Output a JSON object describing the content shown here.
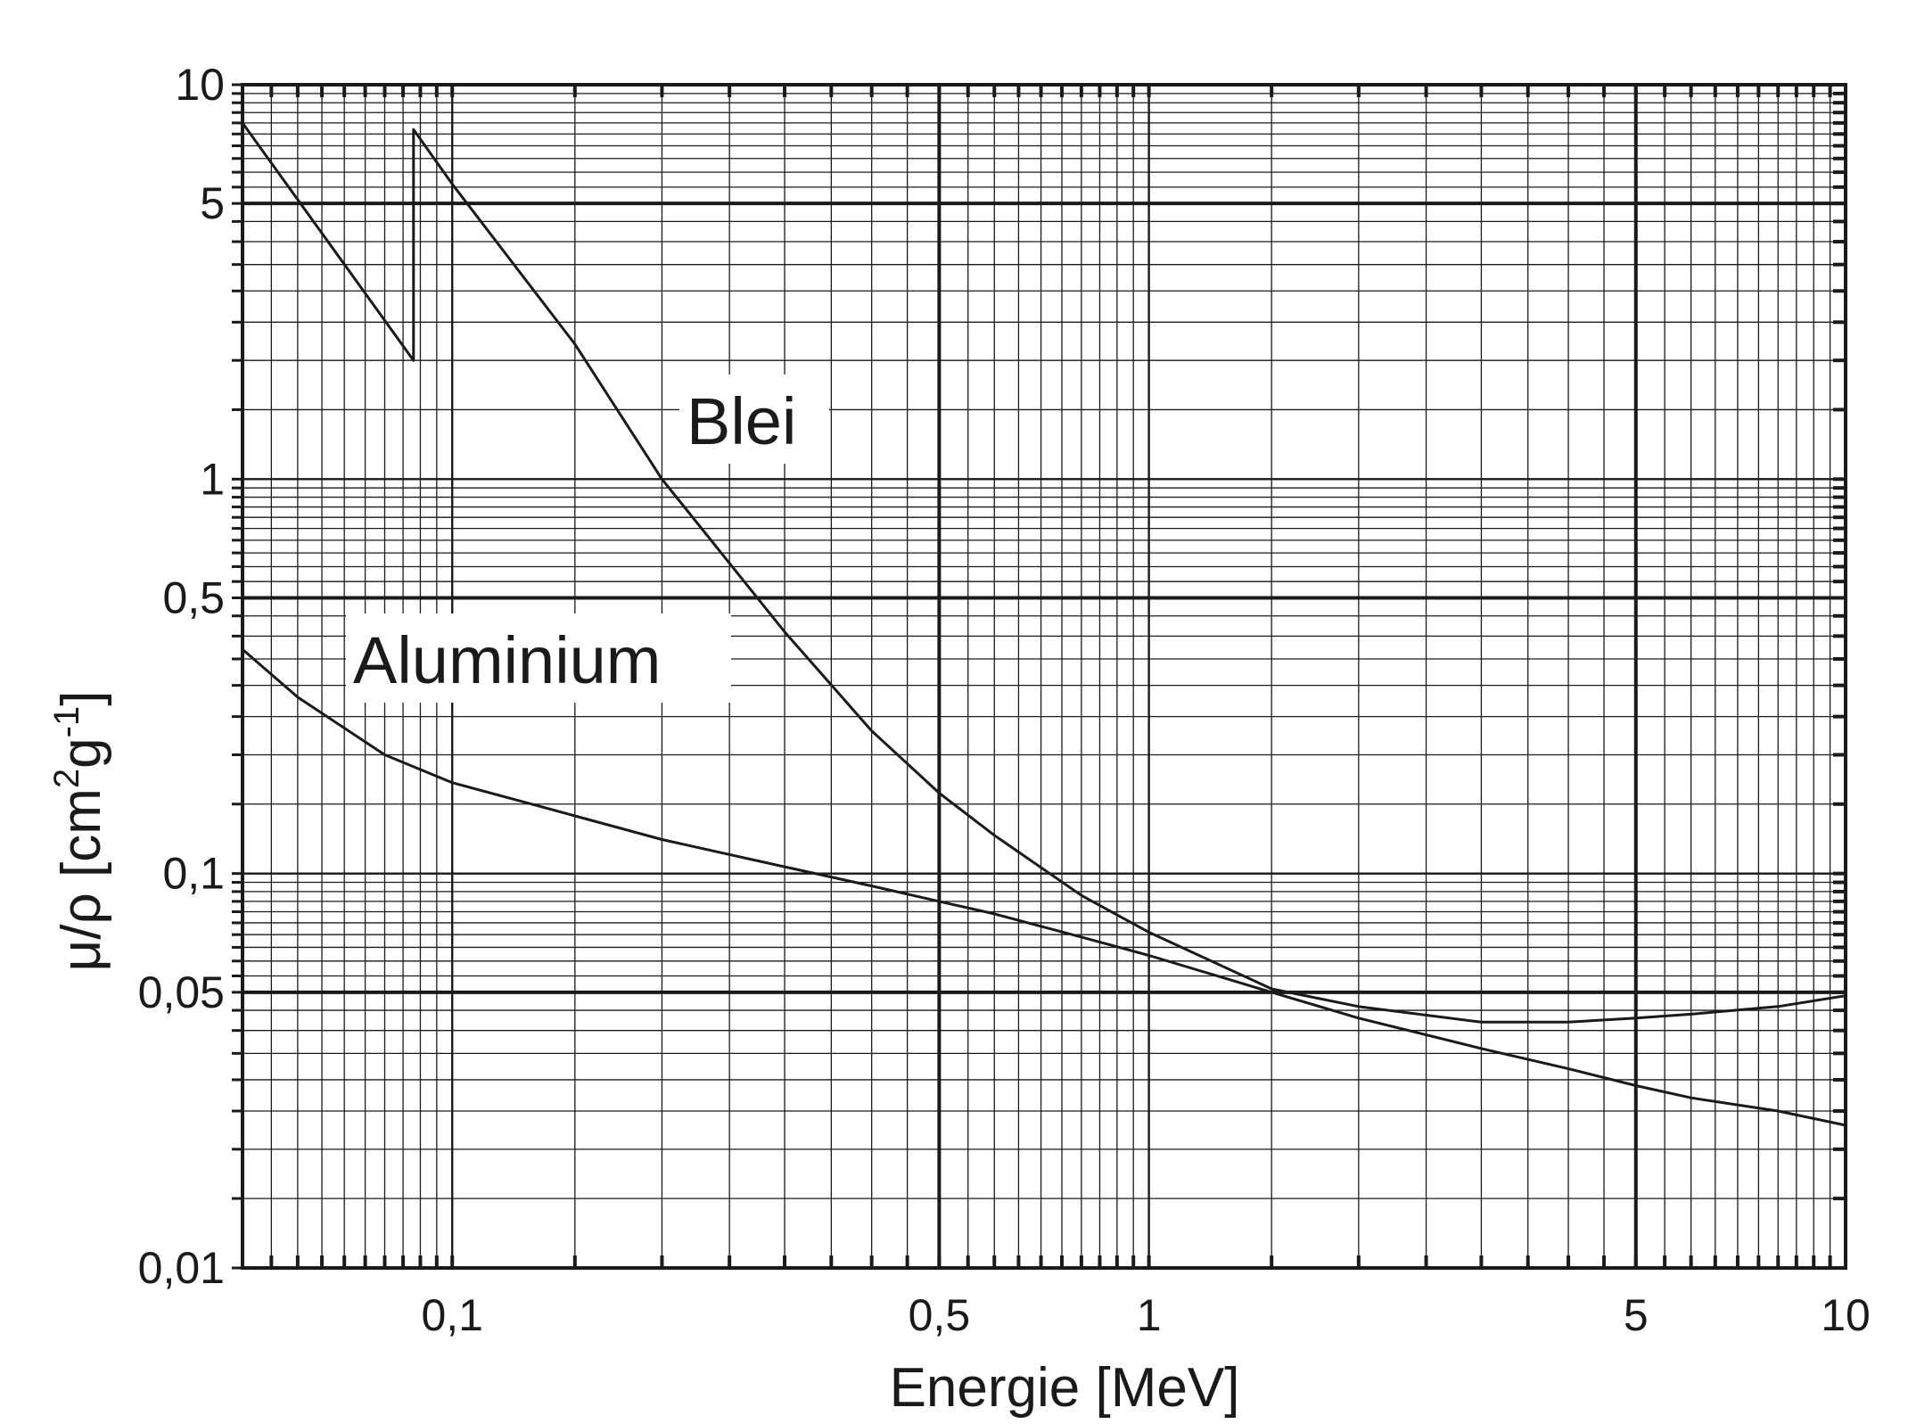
{
  "chart_data": {
    "type": "line",
    "xscale": "log",
    "yscale": "log",
    "xlim": [
      0.05,
      10
    ],
    "ylim": [
      0.01,
      10
    ],
    "grid": true,
    "xlabel": "Energie [MeV]",
    "ylabel": {
      "prefix": "μ/ρ [cm",
      "sup1": "2",
      "mid": "g",
      "sup2": "-1",
      "suffix": "]"
    },
    "xticks": [
      {
        "value": 0.1,
        "label": "0,1"
      },
      {
        "value": 0.5,
        "label": "0,5"
      },
      {
        "value": 1,
        "label": "1"
      },
      {
        "value": 5,
        "label": "5"
      },
      {
        "value": 10,
        "label": "10"
      }
    ],
    "yticks": [
      {
        "value": 0.01,
        "label": "0,01"
      },
      {
        "value": 0.05,
        "label": "0,05"
      },
      {
        "value": 0.1,
        "label": "0,1"
      },
      {
        "value": 0.5,
        "label": "0,5"
      },
      {
        "value": 1,
        "label": "1"
      },
      {
        "value": 5,
        "label": "5"
      },
      {
        "value": 10,
        "label": "10"
      }
    ],
    "series": [
      {
        "name": "Blei",
        "points": [
          [
            0.05,
            8.0
          ],
          [
            0.088,
            2.0
          ],
          [
            0.088,
            7.7
          ],
          [
            0.1,
            5.6
          ],
          [
            0.15,
            2.2
          ],
          [
            0.2,
            1.0
          ],
          [
            0.3,
            0.41
          ],
          [
            0.4,
            0.23
          ],
          [
            0.5,
            0.16
          ],
          [
            0.6,
            0.125
          ],
          [
            0.8,
            0.088
          ],
          [
            1.0,
            0.071
          ],
          [
            1.5,
            0.051
          ],
          [
            2.0,
            0.046
          ],
          [
            3.0,
            0.042
          ],
          [
            4.0,
            0.042
          ],
          [
            5.0,
            0.043
          ],
          [
            6.0,
            0.044
          ],
          [
            8.0,
            0.046
          ],
          [
            10.0,
            0.049
          ]
        ]
      },
      {
        "name": "Aluminium",
        "points": [
          [
            0.05,
            0.37
          ],
          [
            0.06,
            0.28
          ],
          [
            0.08,
            0.2
          ],
          [
            0.1,
            0.17
          ],
          [
            0.15,
            0.14
          ],
          [
            0.2,
            0.122
          ],
          [
            0.3,
            0.104
          ],
          [
            0.4,
            0.093
          ],
          [
            0.5,
            0.085
          ],
          [
            0.6,
            0.079
          ],
          [
            0.8,
            0.069
          ],
          [
            1.0,
            0.062
          ],
          [
            1.5,
            0.05
          ],
          [
            2.0,
            0.043
          ],
          [
            3.0,
            0.036
          ],
          [
            4.0,
            0.032
          ],
          [
            5.0,
            0.029
          ],
          [
            6.0,
            0.027
          ],
          [
            8.0,
            0.025
          ],
          [
            10.0,
            0.023
          ]
        ]
      }
    ]
  }
}
